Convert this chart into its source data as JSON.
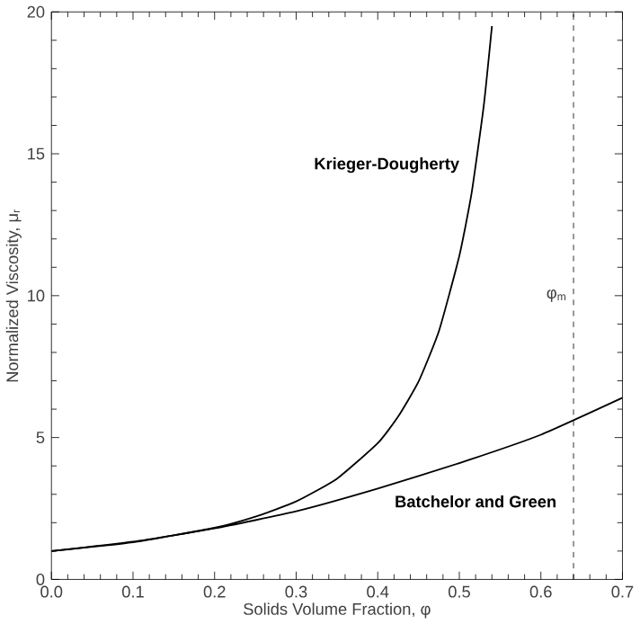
{
  "chart_data": {
    "type": "line",
    "xlabel": "Solids Volume Fraction, φ",
    "ylabel": "Normalized Viscosity, μ$_{r}$",
    "xlim": [
      0,
      0.7
    ],
    "ylim": [
      0,
      20
    ],
    "xticks": [
      {
        "value": 0,
        "label": "0.0"
      },
      0.1,
      0.2,
      0.3,
      0.4,
      0.5,
      0.6,
      0.7
    ],
    "yticks": [
      0,
      5,
      10,
      15,
      20
    ],
    "series": [
      {
        "name": "Krieger-Dougherty",
        "color": "#000000",
        "x": [
          0,
          0.1,
          0.2,
          0.25,
          0.3,
          0.35,
          0.4,
          0.425,
          0.45,
          0.475,
          0.5,
          0.515,
          0.53,
          0.54
        ],
        "values": [
          1,
          1.31,
          1.82,
          2.21,
          2.75,
          3.55,
          4.8,
          5.74,
          6.97,
          8.75,
          11.4,
          13.6,
          16.7,
          19.5
        ]
      },
      {
        "name": "Batchelor and Green",
        "color": "#000000",
        "x": [
          0,
          0.1,
          0.2,
          0.3,
          0.4,
          0.5,
          0.6,
          0.7
        ],
        "values": [
          1,
          1.33,
          1.8,
          2.4,
          3.2,
          4.1,
          5.1,
          6.4
        ]
      }
    ],
    "ref_lines": [
      {
        "axis": "x",
        "value": 0.64,
        "label": "φ$_{m}$",
        "line_style": "dashed"
      }
    ],
    "grid": false,
    "marker": "none",
    "line_style": "solid"
  }
}
